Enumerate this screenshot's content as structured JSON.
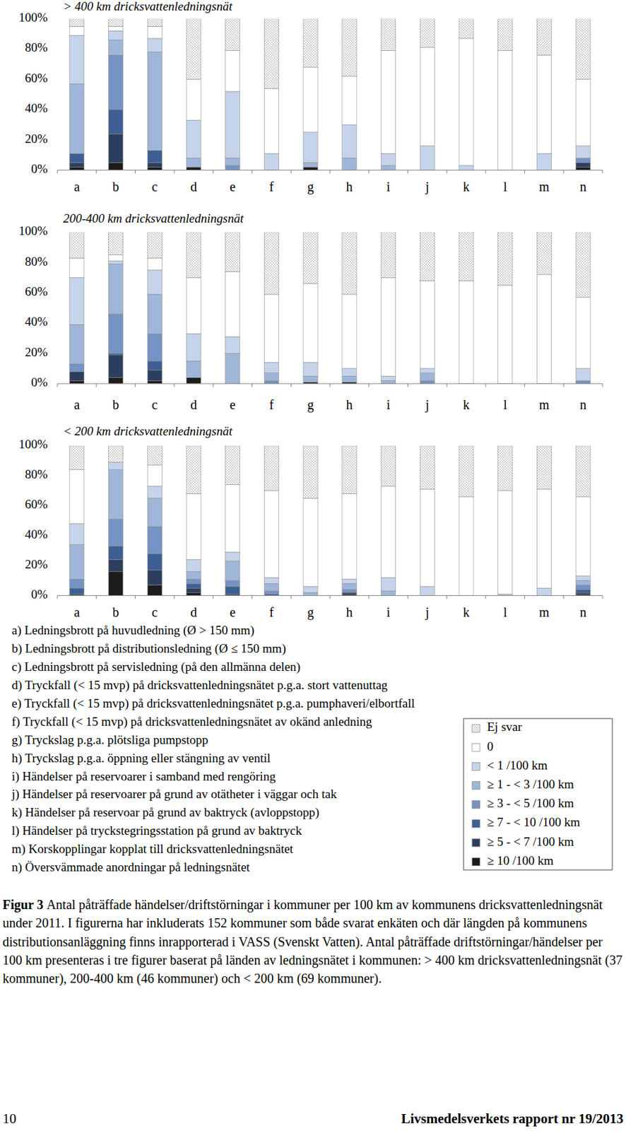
{
  "chart_data": [
    {
      "type": "bar",
      "stacked": true,
      "grid": false,
      "title": "> 400 km dricksvattenledningsnät",
      "categories": [
        "a",
        "b",
        "c",
        "d",
        "e",
        "f",
        "g",
        "h",
        "i",
        "j",
        "k",
        "l",
        "m",
        "n"
      ],
      "ylim": [
        0,
        100
      ],
      "yticks": [
        {
          "value": 0,
          "label": "0%"
        },
        {
          "value": 20,
          "label": "20%"
        },
        {
          "value": 40,
          "label": "40%"
        },
        {
          "value": 60,
          "label": "60%"
        },
        {
          "value": 80,
          "label": "80%"
        },
        {
          "value": 100,
          "label": "100%"
        }
      ],
      "series": [
        {
          "name": "Ej svar",
          "color": "#808080",
          "values": [
            5,
            5,
            5,
            40,
            21,
            46,
            32,
            38,
            21,
            19,
            13,
            21,
            24,
            40
          ]
        },
        {
          "name": "0",
          "color": "#ffffff",
          "values": [
            6,
            3,
            8,
            27,
            27,
            43,
            43,
            32,
            68,
            65,
            84,
            79,
            65,
            44
          ]
        },
        {
          "name": "< 1 /100 km",
          "color": "#c5d4ea",
          "values": [
            32,
            6,
            9,
            25,
            44,
            11,
            20,
            22,
            8,
            16,
            3,
            0,
            11,
            8
          ]
        },
        {
          "name": "≥ 1 - < 3 /100 km",
          "color": "#9fb6d9",
          "values": [
            46,
            10,
            65,
            6,
            5,
            0,
            3,
            8,
            3,
            0,
            0,
            0,
            0,
            0
          ]
        },
        {
          "name": "≥ 3 - < 5 /100 km",
          "color": "#7593c4",
          "values": [
            0,
            36,
            0,
            0,
            3,
            0,
            0,
            0,
            0,
            0,
            0,
            0,
            0,
            3
          ]
        },
        {
          "name": "≥ 7 - < 10 /100 km",
          "color": "#3e5f94",
          "values": [
            6,
            16,
            8,
            0,
            0,
            0,
            0,
            0,
            0,
            0,
            0,
            0,
            0,
            0
          ]
        },
        {
          "name": "≥ 5 - < 7 /100 km",
          "color": "#2c3e5e",
          "values": [
            3,
            19,
            3,
            0,
            0,
            0,
            0,
            0,
            0,
            0,
            0,
            0,
            0,
            3
          ]
        },
        {
          "name": "≥ 10 /100 km",
          "color": "#1c1c1c",
          "values": [
            2,
            5,
            2,
            2,
            0,
            0,
            2,
            0,
            0,
            0,
            0,
            0,
            0,
            2
          ]
        }
      ]
    },
    {
      "type": "bar",
      "stacked": true,
      "grid": false,
      "title": "200-400 km dricksvattenledningsnät",
      "categories": [
        "a",
        "b",
        "c",
        "d",
        "e",
        "f",
        "g",
        "h",
        "i",
        "j",
        "k",
        "l",
        "m",
        "n"
      ],
      "ylim": [
        0,
        100
      ],
      "yticks": [
        {
          "value": 0,
          "label": "0%"
        },
        {
          "value": 20,
          "label": "20%"
        },
        {
          "value": 40,
          "label": "40%"
        },
        {
          "value": 60,
          "label": "60%"
        },
        {
          "value": 80,
          "label": "80%"
        },
        {
          "value": 100,
          "label": "100%"
        }
      ],
      "series": [
        {
          "name": "Ej svar",
          "color": "#808080",
          "values": [
            17,
            15,
            17,
            30,
            26,
            41,
            34,
            41,
            30,
            32,
            32,
            35,
            28,
            43
          ]
        },
        {
          "name": "0",
          "color": "#ffffff",
          "values": [
            13,
            4,
            8,
            37,
            43,
            45,
            52,
            49,
            65,
            58,
            68,
            65,
            72,
            47
          ]
        },
        {
          "name": "< 1 /100 km",
          "color": "#c5d4ea",
          "values": [
            31,
            2,
            16,
            18,
            11,
            7,
            9,
            5,
            3,
            3,
            0,
            0,
            0,
            8
          ]
        },
        {
          "name": "≥ 1 - < 3 /100 km",
          "color": "#9fb6d9",
          "values": [
            26,
            33,
            26,
            11,
            20,
            5,
            4,
            4,
            2,
            5,
            0,
            0,
            0,
            0
          ]
        },
        {
          "name": "≥ 3 - < 5 /100 km",
          "color": "#7593c4",
          "values": [
            5,
            26,
            18,
            0,
            0,
            2,
            0,
            0,
            0,
            2,
            0,
            0,
            0,
            2
          ]
        },
        {
          "name": "≥ 7 - < 10 /100 km",
          "color": "#3e5f94",
          "values": [
            0,
            1,
            6,
            0,
            0,
            0,
            0,
            0,
            0,
            0,
            0,
            0,
            0,
            0
          ]
        },
        {
          "name": "≥ 5 - < 7 /100 km",
          "color": "#2c3e5e",
          "values": [
            6,
            15,
            7,
            0,
            0,
            0,
            0,
            0,
            0,
            0,
            0,
            0,
            0,
            0
          ]
        },
        {
          "name": "≥ 10 /100 km",
          "color": "#1c1c1c",
          "values": [
            2,
            4,
            2,
            4,
            0,
            0,
            1,
            1,
            0,
            0,
            0,
            0,
            0,
            0
          ]
        }
      ]
    },
    {
      "type": "bar",
      "stacked": true,
      "grid": false,
      "title": "< 200 km dricksvattenledningsnät",
      "categories": [
        "a",
        "b",
        "c",
        "d",
        "e",
        "f",
        "g",
        "h",
        "i",
        "j",
        "k",
        "l",
        "m",
        "n"
      ],
      "ylim": [
        0,
        100
      ],
      "yticks": [
        {
          "value": 0,
          "label": "0%"
        },
        {
          "value": 20,
          "label": "20%"
        },
        {
          "value": 40,
          "label": "40%"
        },
        {
          "value": 60,
          "label": "60%"
        },
        {
          "value": 80,
          "label": "80%"
        },
        {
          "value": 100,
          "label": "100%"
        }
      ],
      "series": [
        {
          "name": "Ej svar",
          "color": "#808080",
          "values": [
            16,
            11,
            13,
            32,
            26,
            30,
            35,
            32,
            27,
            29,
            34,
            30,
            29,
            34
          ]
        },
        {
          "name": "0",
          "color": "#ffffff",
          "values": [
            36,
            0,
            14,
            44,
            45,
            58,
            59,
            57,
            61,
            65,
            66,
            69,
            66,
            53
          ]
        },
        {
          "name": "< 1 /100 km",
          "color": "#c5d4ea",
          "values": [
            14,
            5,
            8,
            8,
            6,
            4,
            4,
            3,
            9,
            6,
            0,
            1,
            5,
            3
          ]
        },
        {
          "name": "≥ 1 - < 3 /100 km",
          "color": "#9fb6d9",
          "values": [
            23,
            33,
            19,
            5,
            13,
            5,
            2,
            4,
            3,
            0,
            0,
            0,
            0,
            3
          ]
        },
        {
          "name": "≥ 3 - < 5 /100 km",
          "color": "#7593c4",
          "values": [
            6,
            18,
            18,
            3,
            4,
            2,
            0,
            2,
            0,
            0,
            0,
            0,
            0,
            3
          ]
        },
        {
          "name": "≥ 7 - < 10 /100 km",
          "color": "#3e5f94",
          "values": [
            4,
            9,
            11,
            3,
            5,
            1,
            0,
            0,
            0,
            0,
            0,
            0,
            0,
            2
          ]
        },
        {
          "name": "≥ 5 - < 7 /100 km",
          "color": "#2c3e5e",
          "values": [
            1,
            8,
            10,
            3,
            1,
            0,
            0,
            1,
            0,
            0,
            0,
            0,
            0,
            1
          ]
        },
        {
          "name": "≥ 10 /100 km",
          "color": "#1c1c1c",
          "values": [
            0,
            16,
            7,
            2,
            0,
            0,
            0,
            1,
            0,
            0,
            0,
            0,
            0,
            1
          ]
        }
      ]
    }
  ],
  "category_descriptions": [
    "a) Ledningsbrott på huvudledning (Ø > 150 mm)",
    "b) Ledningsbrott på distributionsledning (Ø ≤ 150 mm)",
    "c) Ledningsbrott på servisledning (på den allmänna delen)",
    "d) Tryckfall (< 15 mvp) på dricksvattenledningsnätet p.g.a. stort vattenuttag",
    "e) Tryckfall (< 15 mvp) på dricksvattenledningsnätet p.g.a. pumphaveri/elbortfall",
    "f) Tryckfall (< 15 mvp) på dricksvattenledningsnätet av okänd anledning",
    "g) Tryckslag p.g.a. plötsliga pumpstopp",
    "h) Tryckslag p.g.a. öppning eller stängning av ventil",
    "i) Händelser på reservoarer i samband med rengöring",
    "j) Händelser på reservoarer på grund av otätheter i väggar och tak",
    "k) Händelser på reservoar på grund av baktryck (avloppstopp)",
    "l) Händelser på tryckstegringsstation på grund av baktryck",
    "m) Korskopplingar kopplat till dricksvattenledningsnätet",
    "n) Översvämmade anordningar på ledningsnätet"
  ],
  "caption": {
    "label": "Figur 3",
    "text": "Antal påträffade händelser/driftstörningar i kommuner per 100 km av kommunens dricksvattenledningsnät under 2011. I figurerna har inkluderats 152 kommuner som både svarat enkäten och där längden på kommunens distributionsanläggning finns inrapporterad i VASS (Svenskt Vatten). Antal påträffade driftstörningar/händelser per 100 km presenteras i tre figurer baserat på länden av ledningsnätet i kommunen: > 400 km dricksvattenledningsnät (37 kommuner), 200-400 km (46 kommuner) och < 200 km (69 kommuner)."
  },
  "footer": {
    "page": "10",
    "report": "Livsmedelsverkets rapport nr 19/2013"
  }
}
